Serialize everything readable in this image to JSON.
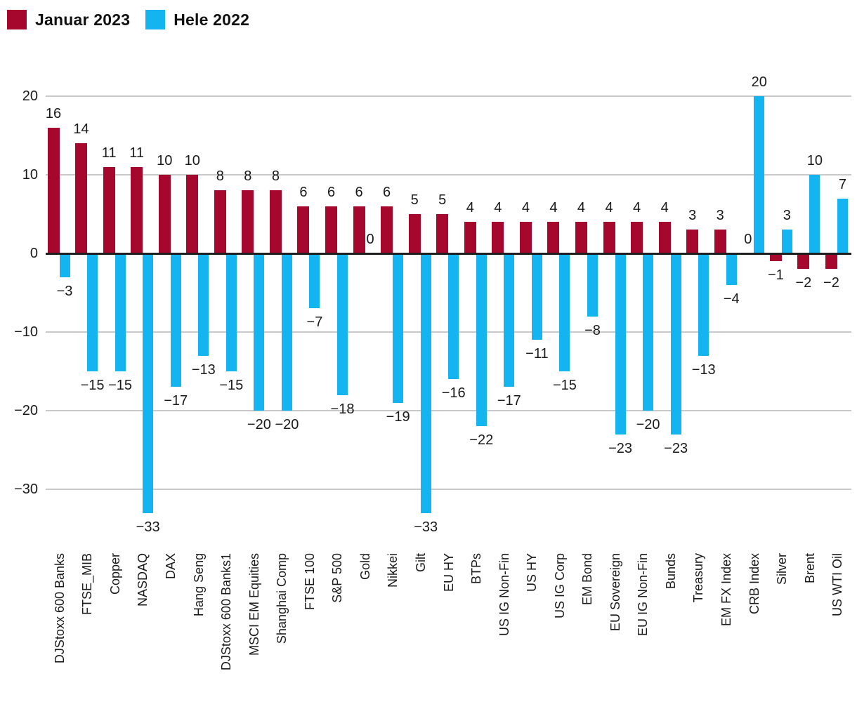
{
  "legend": {
    "items": [
      {
        "label": "Januar 2023",
        "color": "#a6082d"
      },
      {
        "label": "Hele 2022",
        "color": "#14b4f0"
      }
    ]
  },
  "colors": {
    "series_januar_2023": "#a6082d",
    "series_hele_2022": "#14b4f0",
    "gridline": "#c9c9c9",
    "zero_line": "#1f1f1f",
    "text": "#1a1a1a",
    "background": "#ffffff"
  },
  "chart_data": {
    "type": "bar",
    "title": "",
    "xlabel": "",
    "ylabel": "",
    "grid": true,
    "legend_position": "top-left",
    "value_labels": true,
    "yticks": [
      20,
      10,
      0,
      -10,
      -20,
      -30
    ],
    "ylim": [
      -36,
      23
    ],
    "categories": [
      "DJStoxx 600 Banks",
      "FTSE_MIB",
      "Copper",
      "NASDAQ",
      "DAX",
      "Hang Seng",
      "DJStoxx 600 Banks1",
      "MSCI EM Equities",
      "Shanghai Comp",
      "FTSE 100",
      "S&P 500",
      "Gold",
      "Nikkei",
      "Gilt",
      "EU HY",
      "BTPs",
      "US IG Non-Fin",
      "US HY",
      "US IG Corp",
      "EM Bond",
      "EU Sovereign",
      "EU IG Non-Fin",
      "Bunds",
      "Treasury",
      "EM FX Index",
      "CRB Index",
      "Silver",
      "Brent",
      "US WTI Oil"
    ],
    "series": [
      {
        "name": "Januar 2023",
        "color": "#a6082d",
        "values": [
          16,
          14,
          11,
          11,
          10,
          10,
          8,
          8,
          8,
          6,
          6,
          6,
          6,
          5,
          5,
          4,
          4,
          4,
          4,
          4,
          4,
          4,
          4,
          3,
          3,
          0,
          -1,
          -2,
          -2
        ]
      },
      {
        "name": "Hele 2022",
        "color": "#14b4f0",
        "values": [
          -3,
          -15,
          -15,
          -33,
          -17,
          -13,
          -15,
          -20,
          -20,
          -7,
          -18,
          0,
          -19,
          -33,
          -16,
          -22,
          -17,
          -11,
          -15,
          -8,
          -23,
          -20,
          -23,
          -13,
          -4,
          20,
          3,
          10,
          7
        ]
      }
    ]
  }
}
